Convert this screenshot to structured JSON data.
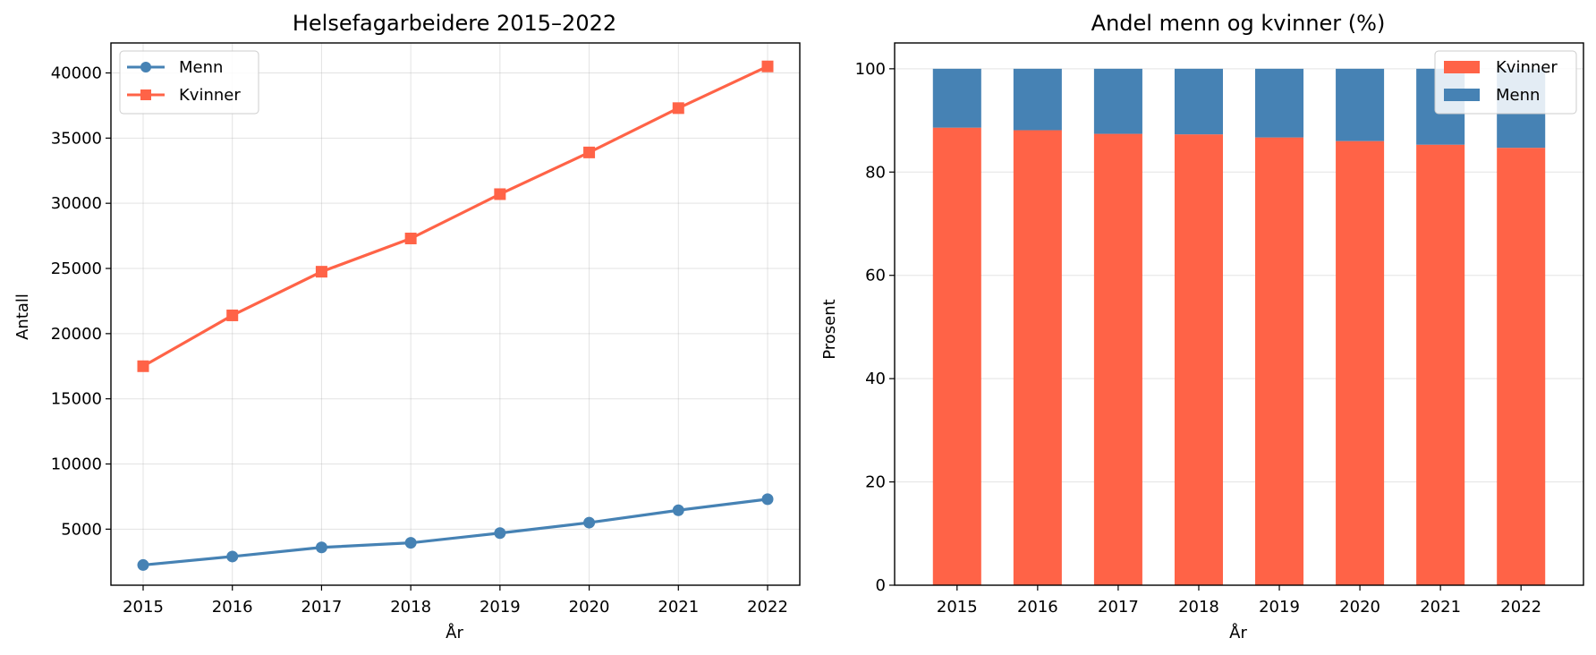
{
  "colors": {
    "menn": "#4682b4",
    "kvinner": "#ff6347"
  },
  "chart_data": [
    {
      "type": "line",
      "title": "Helsefagarbeidere 2015–2022",
      "xlabel": "År",
      "ylabel": "Antall",
      "categories": [
        "2015",
        "2016",
        "2017",
        "2018",
        "2019",
        "2020",
        "2021",
        "2022"
      ],
      "ylim": [
        700,
        42300
      ],
      "yticks": [
        "5000",
        "10000",
        "15000",
        "20000",
        "25000",
        "30000",
        "35000",
        "40000"
      ],
      "grid": true,
      "legend": "top-left",
      "series": [
        {
          "name": "Menn",
          "marker": "circle",
          "values": [
            2250,
            2900,
            3600,
            3950,
            4700,
            5500,
            6450,
            7300
          ]
        },
        {
          "name": "Kvinner",
          "marker": "square",
          "values": [
            17500,
            21400,
            24750,
            27300,
            30700,
            33900,
            37300,
            40500
          ]
        }
      ]
    },
    {
      "type": "bar",
      "stacked": true,
      "title": "Andel menn og kvinner (%)",
      "xlabel": "År",
      "ylabel": "Prosent",
      "categories": [
        "2015",
        "2016",
        "2017",
        "2018",
        "2019",
        "2020",
        "2021",
        "2022"
      ],
      "ylim": [
        0,
        105
      ],
      "yticks": [
        "0",
        "20",
        "40",
        "60",
        "80",
        "100"
      ],
      "grid": true,
      "legend": "top-right",
      "series": [
        {
          "name": "Kvinner",
          "values": [
            88.6,
            88.1,
            87.4,
            87.3,
            86.7,
            86.0,
            85.3,
            84.7
          ]
        },
        {
          "name": "Menn",
          "values": [
            11.4,
            11.9,
            12.6,
            12.7,
            13.3,
            14.0,
            14.7,
            15.3
          ]
        }
      ]
    }
  ]
}
